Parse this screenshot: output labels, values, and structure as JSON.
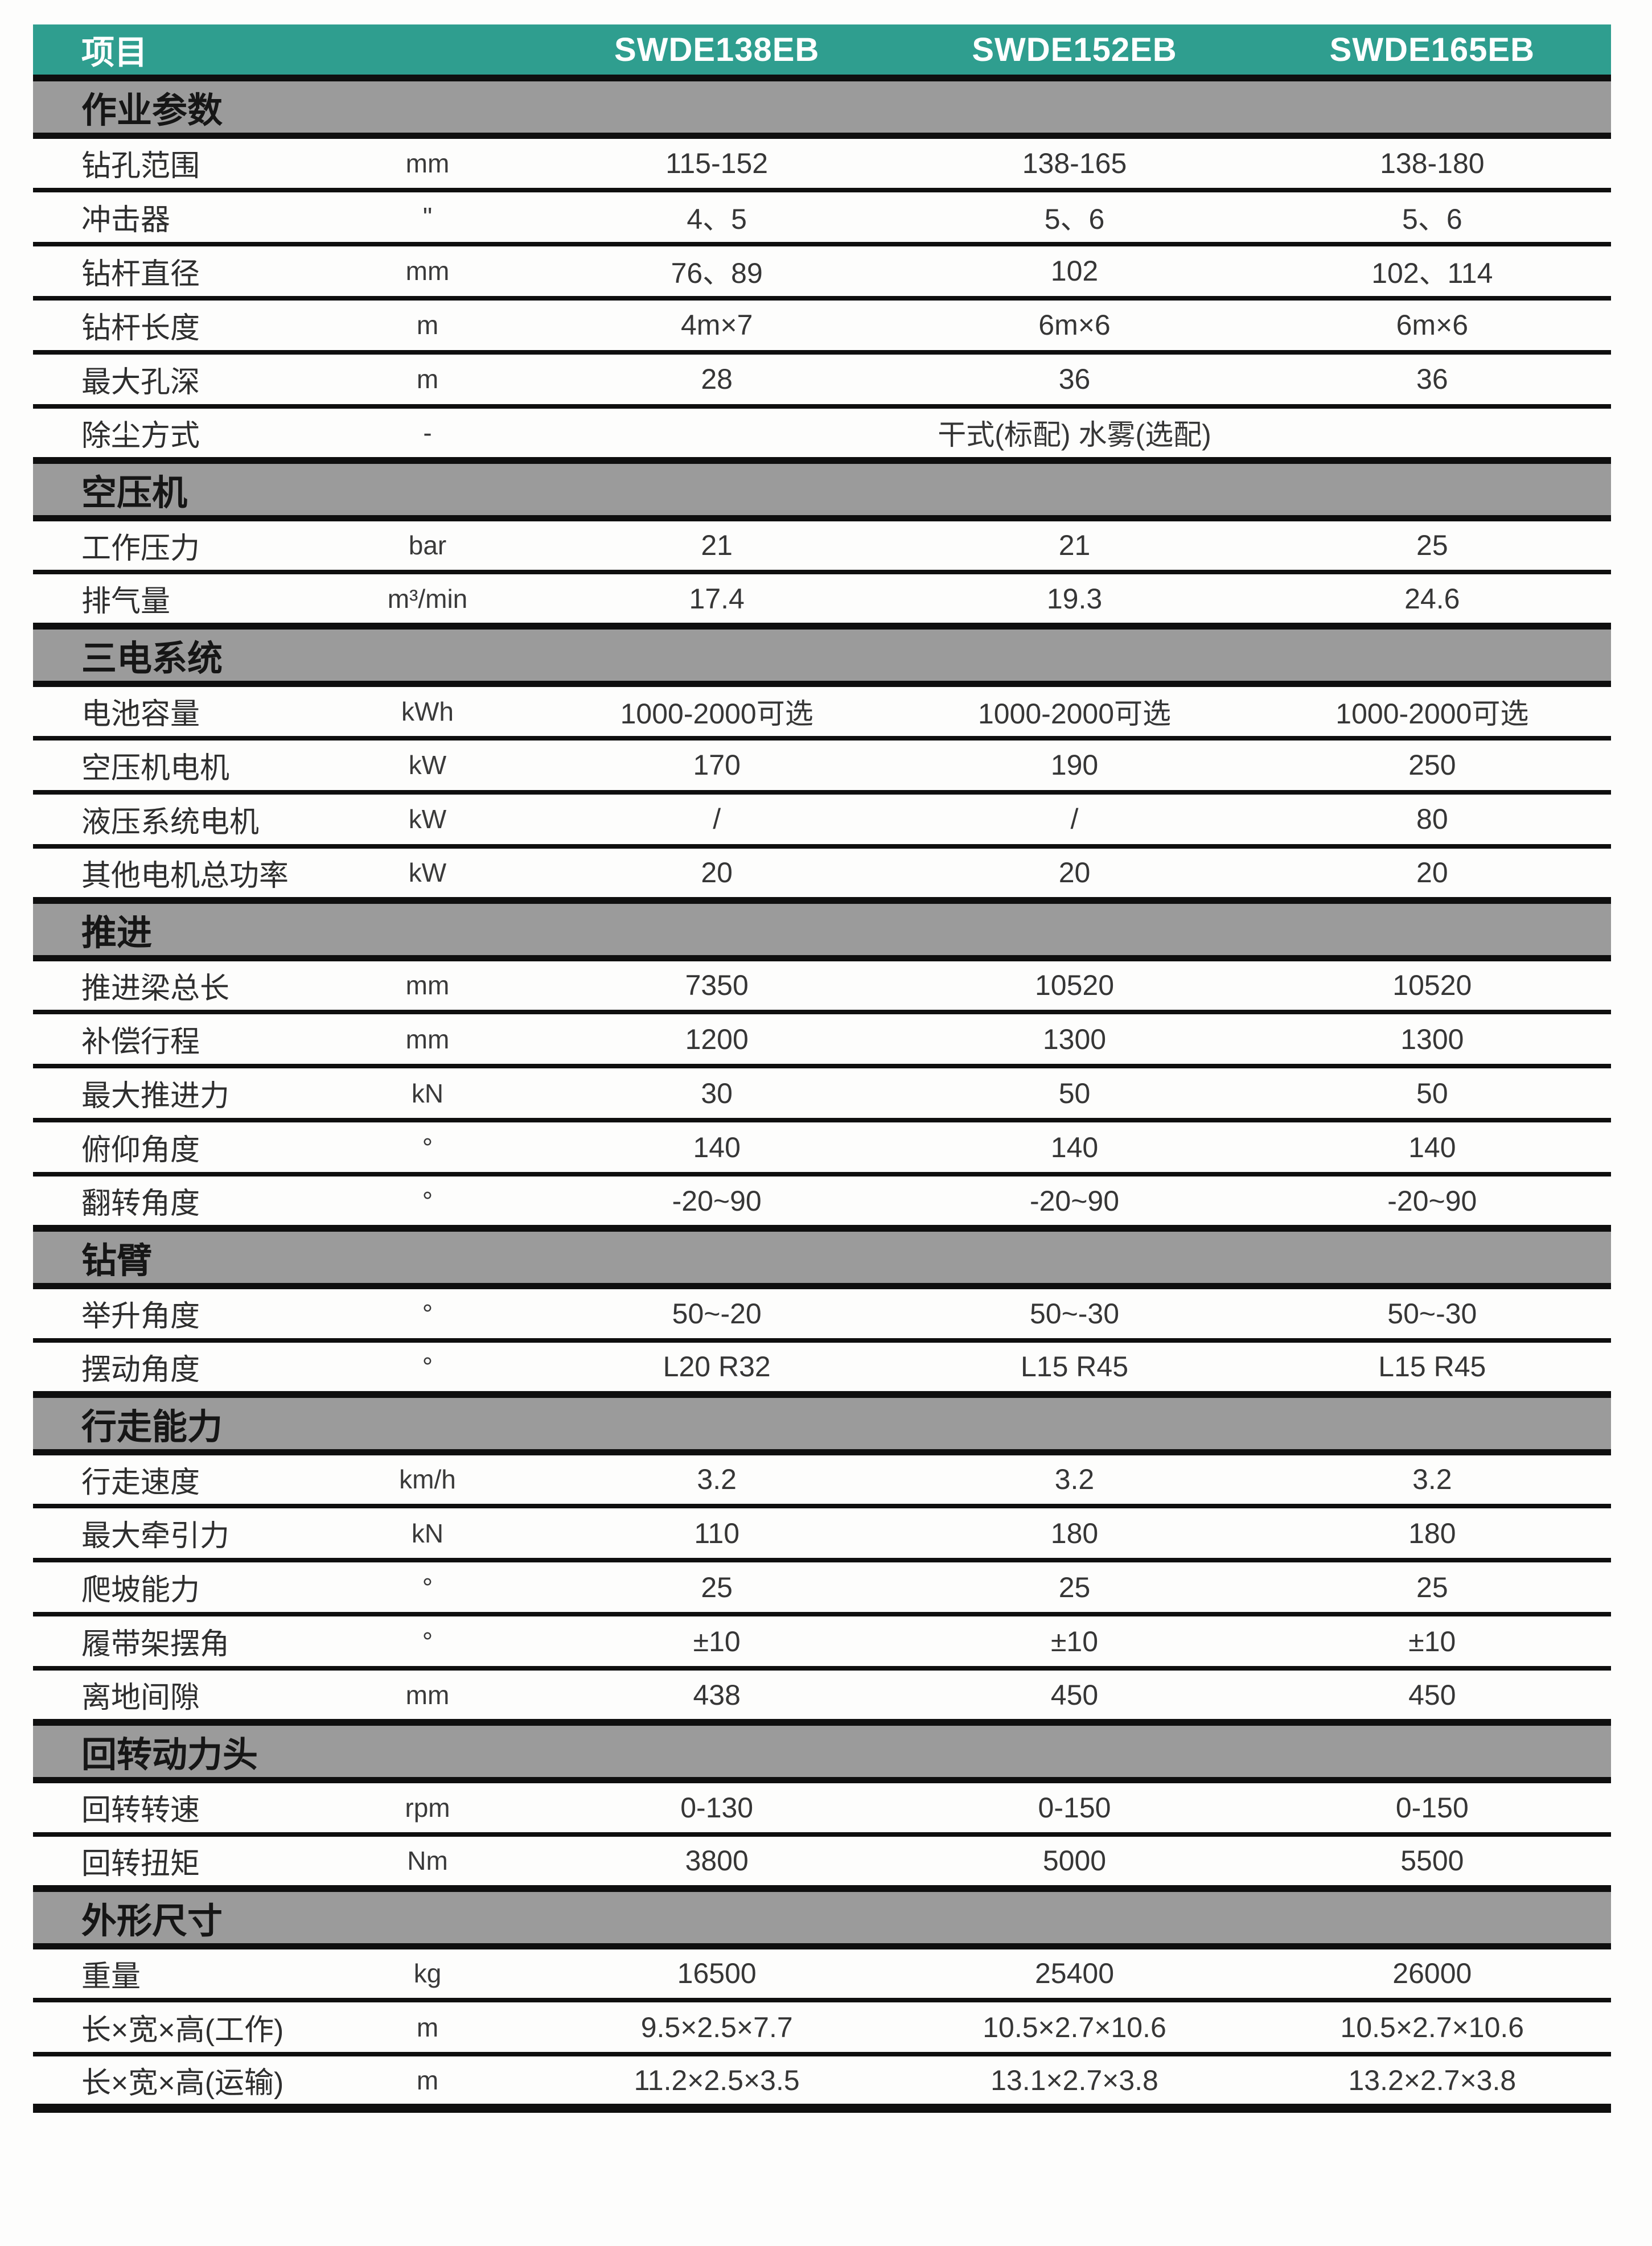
{
  "colors": {
    "header_bg": "#2F9E8F",
    "header_text": "#FFFFFF",
    "section_bg": "#9B9B9B",
    "section_text": "#161616",
    "name_text": "#2E2E2E",
    "value_text": "#363636",
    "line": "#0F0F0F"
  },
  "header": {
    "item_label": "项目",
    "models": [
      "SWDE138EB",
      "SWDE152EB",
      "SWDE165EB"
    ]
  },
  "sections": [
    {
      "title": "作业参数",
      "rows": [
        {
          "name": "钻孔范围",
          "unit": "mm",
          "values": [
            "115-152",
            "138-165",
            "138-180"
          ]
        },
        {
          "name": "冲击器",
          "unit": "\"",
          "values": [
            "4、5",
            "5、6",
            "5、6"
          ]
        },
        {
          "name": "钻杆直径",
          "unit": "mm",
          "values": [
            "76、89",
            "102",
            "102、114"
          ]
        },
        {
          "name": "钻杆长度",
          "unit": "m",
          "values": [
            "4m×7",
            "6m×6",
            "6m×6"
          ]
        },
        {
          "name": "最大孔深",
          "unit": "m",
          "values": [
            "28",
            "36",
            "36"
          ]
        },
        {
          "name": "除尘方式",
          "unit": "-",
          "values": [
            "干式(标配) 水雾(选配)"
          ],
          "span": true
        }
      ]
    },
    {
      "title": "空压机",
      "rows": [
        {
          "name": "工作压力",
          "unit": "bar",
          "values": [
            "21",
            "21",
            "25"
          ]
        },
        {
          "name": "排气量",
          "unit": "m³/min",
          "values": [
            "17.4",
            "19.3",
            "24.6"
          ]
        }
      ]
    },
    {
      "title": "三电系统",
      "rows": [
        {
          "name": "电池容量",
          "unit": "kWh",
          "values": [
            "1000-2000可选",
            "1000-2000可选",
            "1000-2000可选"
          ]
        },
        {
          "name": "空压机电机",
          "unit": "kW",
          "values": [
            "170",
            "190",
            "250"
          ]
        },
        {
          "name": "液压系统电机",
          "unit": "kW",
          "values": [
            "/",
            "/",
            "80"
          ]
        },
        {
          "name": "其他电机总功率",
          "unit": "kW",
          "values": [
            "20",
            "20",
            "20"
          ]
        }
      ]
    },
    {
      "title": "推进",
      "rows": [
        {
          "name": "推进梁总长",
          "unit": "mm",
          "values": [
            "7350",
            "10520",
            "10520"
          ]
        },
        {
          "name": "补偿行程",
          "unit": "mm",
          "values": [
            "1200",
            "1300",
            "1300"
          ]
        },
        {
          "name": "最大推进力",
          "unit": "kN",
          "values": [
            "30",
            "50",
            "50"
          ]
        },
        {
          "name": "俯仰角度",
          "unit": "°",
          "values": [
            "140",
            "140",
            "140"
          ]
        },
        {
          "name": "翻转角度",
          "unit": "°",
          "values": [
            "-20~90",
            "-20~90",
            "-20~90"
          ]
        }
      ]
    },
    {
      "title": "钻臂",
      "rows": [
        {
          "name": "举升角度",
          "unit": "°",
          "values": [
            "50~-20",
            "50~-30",
            "50~-30"
          ]
        },
        {
          "name": "摆动角度",
          "unit": "°",
          "values": [
            "L20 R32",
            "L15 R45",
            "L15 R45"
          ]
        }
      ]
    },
    {
      "title": "行走能力",
      "rows": [
        {
          "name": "行走速度",
          "unit": "km/h",
          "values": [
            "3.2",
            "3.2",
            "3.2"
          ]
        },
        {
          "name": "最大牵引力",
          "unit": "kN",
          "values": [
            "110",
            "180",
            "180"
          ]
        },
        {
          "name": "爬坡能力",
          "unit": "°",
          "values": [
            "25",
            "25",
            "25"
          ]
        },
        {
          "name": "履带架摆角",
          "unit": "°",
          "values": [
            "±10",
            "±10",
            "±10"
          ]
        },
        {
          "name": "离地间隙",
          "unit": "mm",
          "values": [
            "438",
            "450",
            "450"
          ]
        }
      ]
    },
    {
      "title": "回转动力头",
      "rows": [
        {
          "name": "回转转速",
          "unit": "rpm",
          "values": [
            "0-130",
            "0-150",
            "0-150"
          ]
        },
        {
          "name": "回转扭矩",
          "unit": "Nm",
          "values": [
            "3800",
            "5000",
            "5500"
          ]
        }
      ]
    },
    {
      "title": "外形尺寸",
      "rows": [
        {
          "name": "重量",
          "unit": "kg",
          "values": [
            "16500",
            "25400",
            "26000"
          ]
        },
        {
          "name": "长×宽×高(工作)",
          "unit": "m",
          "values": [
            "9.5×2.5×7.7",
            "10.5×2.7×10.6",
            "10.5×2.7×10.6"
          ]
        },
        {
          "name": "长×宽×高(运输)",
          "unit": "m",
          "values": [
            "11.2×2.5×3.5",
            "13.1×2.7×3.8",
            "13.2×2.7×3.8"
          ]
        }
      ]
    }
  ]
}
